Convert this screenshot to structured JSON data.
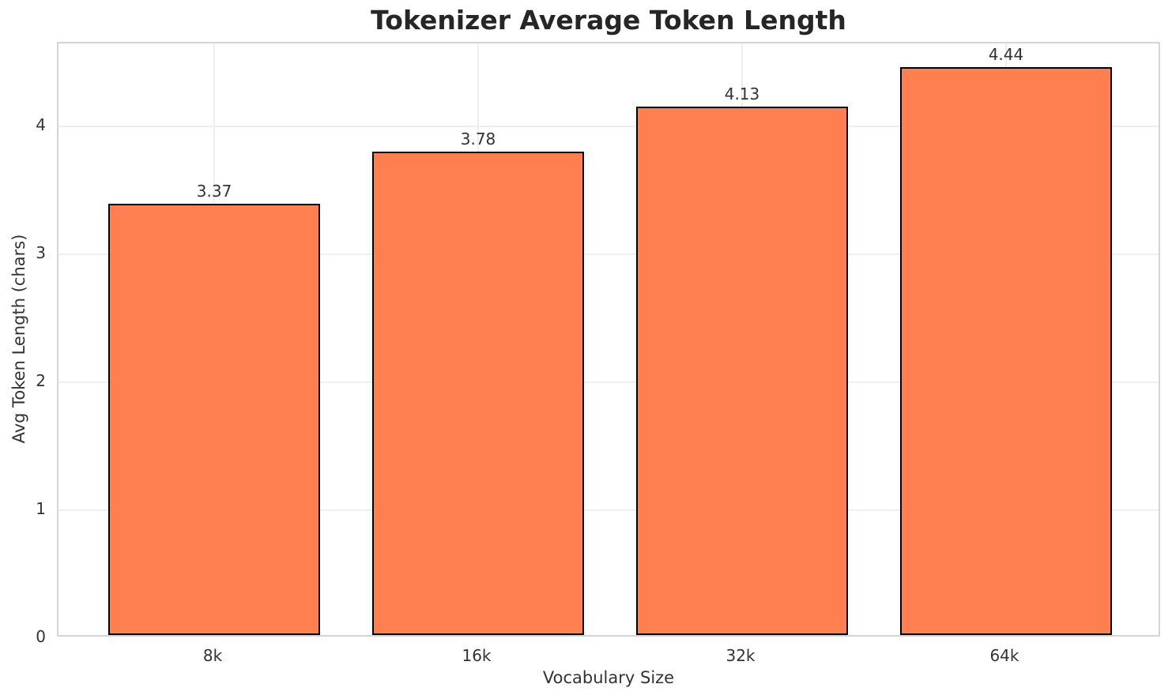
{
  "chart_data": {
    "type": "bar",
    "title": "Tokenizer Average Token Length",
    "xlabel": "Vocabulary Size",
    "ylabel": "Avg Token Length (chars)",
    "categories": [
      "8k",
      "16k",
      "32k",
      "64k"
    ],
    "values": [
      3.37,
      3.78,
      4.13,
      4.44
    ],
    "value_labels": [
      "3.37",
      "3.78",
      "4.13",
      "4.44"
    ],
    "yticks": [
      0,
      1,
      2,
      3,
      4
    ],
    "ylim": [
      0,
      4.65
    ],
    "xlim": [
      -0.59,
      3.59
    ],
    "bar_width": 0.8,
    "grid": true,
    "legend": "none",
    "colors": {
      "bar_fill": "#FF7F50",
      "bar_edge": "#000000",
      "grid_line": "#efefef",
      "spine": "#d5d5d5",
      "title_text": "#262626",
      "label_text": "#333333"
    }
  }
}
